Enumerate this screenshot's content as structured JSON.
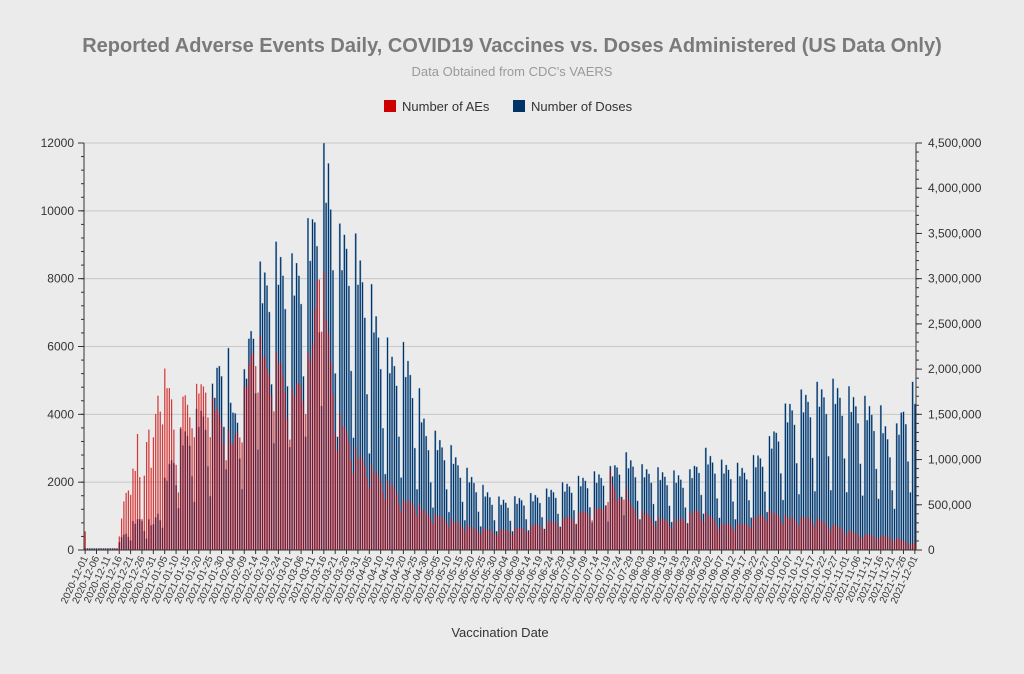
{
  "colors": {
    "background": "#ebebeb",
    "ae": "#cc0000",
    "doses": "#003366",
    "grid": "#c8c8c8",
    "title": "#7a7a7a",
    "subtitle": "#9a9a9a",
    "axis_text": "#333333"
  },
  "chart_data": {
    "type": "bar",
    "title": "Reported Adverse Events Daily, COVID19 Vaccines vs. Doses Administered (US Data Only)",
    "subtitle": "Data Obtained from CDC's VAERS",
    "xlabel": "Vaccination Date",
    "ylabel_left": "",
    "ylabel_right": "",
    "y_left_lim": [
      0,
      12000
    ],
    "y_right_lim": [
      0,
      4500000
    ],
    "y_left_ticks": [
      0,
      2000,
      4000,
      6000,
      8000,
      10000,
      12000
    ],
    "y_left_tick_labels": [
      "0",
      "2000",
      "4000",
      "6000",
      "8000",
      "10000",
      "12000"
    ],
    "y_right_ticks": [
      0,
      500000,
      1000000,
      1500000,
      2000000,
      2500000,
      3000000,
      3500000,
      4000000,
      4500000
    ],
    "y_right_tick_labels": [
      "0",
      "500,000",
      "1,000,000",
      "1,500,000",
      "2,000,000",
      "2,500,000",
      "3,000,000",
      "3,500,000",
      "4,000,000",
      "4,500,000"
    ],
    "x_start": "2020-12-01",
    "x_end": "2021-12-01",
    "x_tick_labels": [
      "2020-12-01",
      "2020-12-06",
      "2020-12-11",
      "2020-12-16",
      "2020-12-21",
      "2020-12-26",
      "2020-12-31",
      "2021-01-05",
      "2021-01-10",
      "2021-01-15",
      "2021-01-20",
      "2021-01-25",
      "2021-01-30",
      "2021-02-04",
      "2021-02-09",
      "2021-02-14",
      "2021-02-19",
      "2021-02-24",
      "2021-03-01",
      "2021-03-06",
      "2021-03-11",
      "2021-03-16",
      "2021-03-21",
      "2021-03-26",
      "2021-03-31",
      "2021-04-05",
      "2021-04-10",
      "2021-04-15",
      "2021-04-20",
      "2021-04-25",
      "2021-04-30",
      "2021-05-05",
      "2021-05-10",
      "2021-05-15",
      "2021-05-20",
      "2021-05-25",
      "2021-05-30",
      "2021-06-04",
      "2021-06-09",
      "2021-06-14",
      "2021-06-19",
      "2021-06-24",
      "2021-06-29",
      "2021-07-04",
      "2021-07-09",
      "2021-07-14",
      "2021-07-19",
      "2021-07-24",
      "2021-07-29",
      "2021-08-03",
      "2021-08-08",
      "2021-08-13",
      "2021-08-18",
      "2021-08-23",
      "2021-08-28",
      "2021-09-02",
      "2021-09-07",
      "2021-09-12",
      "2021-09-17",
      "2021-09-22",
      "2021-09-27",
      "2021-10-02",
      "2021-10-07",
      "2021-10-12",
      "2021-10-17",
      "2021-10-22",
      "2021-10-27",
      "2021-11-01",
      "2021-11-06",
      "2021-11-11",
      "2021-11-16",
      "2021-11-21",
      "2021-11-26",
      "2021-12-01"
    ],
    "legend": [
      {
        "name": "Number of AEs",
        "axis": "left"
      },
      {
        "name": "Number of Doses",
        "axis": "right"
      }
    ],
    "legend_position": "top-center",
    "series": [
      {
        "name": "Number of AEs",
        "axis": "left",
        "anchors": [
          {
            "day": 0,
            "value": 550
          },
          {
            "day": 1,
            "value": 30
          },
          {
            "day": 14,
            "value": 40
          },
          {
            "day": 15,
            "value": 400
          },
          {
            "day": 17,
            "value": 1500
          },
          {
            "day": 19,
            "value": 2200
          },
          {
            "day": 22,
            "value": 2500
          },
          {
            "day": 23,
            "value": 3500
          },
          {
            "day": 25,
            "value": 1000
          },
          {
            "day": 27,
            "value": 4500
          },
          {
            "day": 29,
            "value": 2600
          },
          {
            "day": 32,
            "value": 5000
          },
          {
            "day": 35,
            "value": 5350
          },
          {
            "day": 38,
            "value": 4650
          },
          {
            "day": 41,
            "value": 2400
          },
          {
            "day": 43,
            "value": 4850
          },
          {
            "day": 46,
            "value": 4300
          },
          {
            "day": 49,
            "value": 4900
          },
          {
            "day": 53,
            "value": 5100
          },
          {
            "day": 56,
            "value": 4500
          },
          {
            "day": 60,
            "value": 4100
          },
          {
            "day": 65,
            "value": 3200
          },
          {
            "day": 70,
            "value": 4800
          },
          {
            "day": 73,
            "value": 6000
          },
          {
            "day": 75,
            "value": 6800
          },
          {
            "day": 80,
            "value": 5600
          },
          {
            "day": 85,
            "value": 5900
          },
          {
            "day": 90,
            "value": 4600
          },
          {
            "day": 95,
            "value": 5300
          },
          {
            "day": 100,
            "value": 6200
          },
          {
            "day": 103,
            "value": 10000
          },
          {
            "day": 106,
            "value": 7300
          },
          {
            "day": 110,
            "value": 4300
          },
          {
            "day": 115,
            "value": 3600
          },
          {
            "day": 120,
            "value": 2900
          },
          {
            "day": 125,
            "value": 2600
          },
          {
            "day": 130,
            "value": 2200
          },
          {
            "day": 135,
            "value": 2000
          },
          {
            "day": 140,
            "value": 1500
          },
          {
            "day": 145,
            "value": 1500
          },
          {
            "day": 150,
            "value": 1150
          },
          {
            "day": 160,
            "value": 950
          },
          {
            "day": 170,
            "value": 700
          },
          {
            "day": 180,
            "value": 600
          },
          {
            "day": 190,
            "value": 650
          },
          {
            "day": 200,
            "value": 800
          },
          {
            "day": 210,
            "value": 950
          },
          {
            "day": 220,
            "value": 1200
          },
          {
            "day": 228,
            "value": 1300
          },
          {
            "day": 231,
            "value": 2350
          },
          {
            "day": 234,
            "value": 1500
          },
          {
            "day": 237,
            "value": 2100
          },
          {
            "day": 240,
            "value": 1350
          },
          {
            "day": 250,
            "value": 1000
          },
          {
            "day": 260,
            "value": 900
          },
          {
            "day": 270,
            "value": 1250
          },
          {
            "day": 280,
            "value": 800
          },
          {
            "day": 290,
            "value": 800
          },
          {
            "day": 300,
            "value": 1200
          },
          {
            "day": 310,
            "value": 1000
          },
          {
            "day": 320,
            "value": 1000
          },
          {
            "day": 330,
            "value": 750
          },
          {
            "day": 340,
            "value": 500
          },
          {
            "day": 355,
            "value": 400
          },
          {
            "day": 360,
            "value": 300
          },
          {
            "day": 365,
            "value": 200
          }
        ]
      },
      {
        "name": "Number of Doses",
        "axis": "right",
        "anchors": [
          {
            "day": 0,
            "value": 20000
          },
          {
            "day": 14,
            "value": 20000
          },
          {
            "day": 16,
            "value": 150000
          },
          {
            "day": 20,
            "value": 300000
          },
          {
            "day": 25,
            "value": 400000
          },
          {
            "day": 30,
            "value": 300000
          },
          {
            "day": 35,
            "value": 800000
          },
          {
            "day": 40,
            "value": 1300000
          },
          {
            "day": 45,
            "value": 1400000
          },
          {
            "day": 50,
            "value": 1600000
          },
          {
            "day": 55,
            "value": 1700000
          },
          {
            "day": 60,
            "value": 2400000
          },
          {
            "day": 62,
            "value": 2550000
          },
          {
            "day": 65,
            "value": 1600000
          },
          {
            "day": 70,
            "value": 2000000
          },
          {
            "day": 75,
            "value": 3150000
          },
          {
            "day": 80,
            "value": 3250000
          },
          {
            "day": 85,
            "value": 3450000
          },
          {
            "day": 90,
            "value": 3250000
          },
          {
            "day": 95,
            "value": 3400000
          },
          {
            "day": 100,
            "value": 3850000
          },
          {
            "day": 104,
            "value": 4550000
          },
          {
            "day": 107,
            "value": 4500000
          },
          {
            "day": 110,
            "value": 3550000
          },
          {
            "day": 115,
            "value": 3700000
          },
          {
            "day": 120,
            "value": 3450000
          },
          {
            "day": 125,
            "value": 3050000
          },
          {
            "day": 130,
            "value": 2500000
          },
          {
            "day": 135,
            "value": 2250000
          },
          {
            "day": 140,
            "value": 2300000
          },
          {
            "day": 145,
            "value": 2050000
          },
          {
            "day": 150,
            "value": 1400000
          },
          {
            "day": 155,
            "value": 1300000
          },
          {
            "day": 160,
            "value": 1200000
          },
          {
            "day": 165,
            "value": 1000000
          },
          {
            "day": 170,
            "value": 850000
          },
          {
            "day": 175,
            "value": 720000
          },
          {
            "day": 180,
            "value": 600000
          },
          {
            "day": 185,
            "value": 580000
          },
          {
            "day": 190,
            "value": 600000
          },
          {
            "day": 200,
            "value": 650000
          },
          {
            "day": 210,
            "value": 750000
          },
          {
            "day": 220,
            "value": 850000
          },
          {
            "day": 230,
            "value": 900000
          },
          {
            "day": 237,
            "value": 1100000
          },
          {
            "day": 245,
            "value": 950000
          },
          {
            "day": 255,
            "value": 900000
          },
          {
            "day": 265,
            "value": 850000
          },
          {
            "day": 272,
            "value": 1150000
          },
          {
            "day": 280,
            "value": 1000000
          },
          {
            "day": 290,
            "value": 950000
          },
          {
            "day": 300,
            "value": 1200000
          },
          {
            "day": 305,
            "value": 1500000
          },
          {
            "day": 310,
            "value": 1700000
          },
          {
            "day": 320,
            "value": 1850000
          },
          {
            "day": 330,
            "value": 1900000
          },
          {
            "day": 340,
            "value": 1750000
          },
          {
            "day": 350,
            "value": 1600000
          },
          {
            "day": 355,
            "value": 1200000
          },
          {
            "day": 360,
            "value": 1700000
          },
          {
            "day": 365,
            "value": 1900000
          }
        ]
      }
    ]
  }
}
